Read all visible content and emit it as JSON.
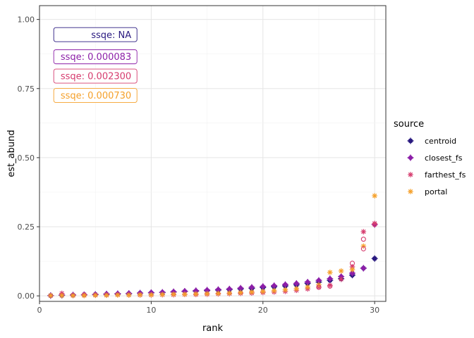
{
  "chart_data": {
    "type": "scatter",
    "xlabel": "rank",
    "ylabel": "est_abund",
    "xlim": [
      0,
      31
    ],
    "ylim": [
      -0.02,
      1.05
    ],
    "x_ticks": [
      0,
      10,
      20,
      30
    ],
    "y_ticks": [
      0.0,
      0.25,
      0.5,
      0.75,
      1.0
    ],
    "x_tick_labels": [
      "0",
      "10",
      "20",
      "30"
    ],
    "y_tick_labels": [
      "0.00",
      "0.25",
      "0.50",
      "0.75",
      "1.00"
    ],
    "grid": true,
    "legend": {
      "title": "source",
      "position": "right"
    },
    "series": [
      {
        "name": "centroid",
        "color": "#2a1a80",
        "marker": "filled-circle-cross",
        "x": [
          1,
          2,
          3,
          4,
          5,
          6,
          7,
          8,
          9,
          10,
          11,
          12,
          13,
          14,
          15,
          16,
          17,
          18,
          19,
          20,
          21,
          22,
          23,
          24,
          25,
          26,
          27,
          28,
          29,
          30
        ],
        "y": [
          0.001,
          0.002,
          0.003,
          0.004,
          0.005,
          0.006,
          0.007,
          0.008,
          0.01,
          0.011,
          0.012,
          0.014,
          0.016,
          0.017,
          0.019,
          0.021,
          0.023,
          0.025,
          0.027,
          0.03,
          0.033,
          0.036,
          0.04,
          0.045,
          0.05,
          0.056,
          0.062,
          0.075,
          0.1,
          0.135
        ]
      },
      {
        "name": "closest_fs",
        "color": "#8c1fa8",
        "marker": "diamond-cross",
        "x": [
          1,
          2,
          3,
          4,
          5,
          6,
          7,
          8,
          9,
          10,
          11,
          12,
          13,
          14,
          15,
          16,
          17,
          18,
          19,
          20,
          21,
          22,
          23,
          24,
          25,
          26,
          27,
          28,
          29,
          30
        ],
        "y": [
          0.001,
          0.003,
          0.003,
          0.004,
          0.005,
          0.007,
          0.008,
          0.009,
          0.01,
          0.012,
          0.013,
          0.015,
          0.017,
          0.019,
          0.021,
          0.023,
          0.025,
          0.028,
          0.031,
          0.034,
          0.037,
          0.041,
          0.045,
          0.05,
          0.056,
          0.062,
          0.07,
          0.082,
          0.1,
          0.258
        ]
      },
      {
        "name": "farthest_fs",
        "color": "#d63c6e",
        "marker": "asterisk",
        "x": [
          1,
          2,
          3,
          4,
          5,
          6,
          7,
          8,
          9,
          10,
          11,
          12,
          13,
          14,
          15,
          16,
          17,
          18,
          19,
          20,
          21,
          22,
          23,
          24,
          25,
          26,
          27,
          28,
          29,
          30
        ],
        "y": [
          0.001,
          0.009,
          0.002,
          0.004,
          0.003,
          0.003,
          0.004,
          0.003,
          0.003,
          0.003,
          0.004,
          0.004,
          0.005,
          0.005,
          0.006,
          0.007,
          0.008,
          0.009,
          0.01,
          0.012,
          0.014,
          0.016,
          0.02,
          0.025,
          0.032,
          0.038,
          0.06,
          0.105,
          0.232,
          0.262
        ]
      },
      {
        "name": "portal",
        "color": "#f5a02a",
        "marker": "asterisk",
        "x": [
          1,
          2,
          3,
          4,
          5,
          6,
          7,
          8,
          9,
          10,
          11,
          12,
          13,
          14,
          15,
          16,
          17,
          18,
          19,
          20,
          21,
          22,
          23,
          24,
          25,
          26,
          27,
          28,
          29,
          30
        ],
        "y": [
          0.001,
          0.001,
          0.001,
          0.001,
          0.002,
          0.002,
          0.003,
          0.003,
          0.004,
          0.004,
          0.005,
          0.006,
          0.006,
          0.007,
          0.008,
          0.009,
          0.01,
          0.012,
          0.014,
          0.016,
          0.019,
          0.022,
          0.026,
          0.032,
          0.04,
          0.085,
          0.09,
          0.095,
          0.18,
          0.362
        ]
      }
    ],
    "extra_points": [
      {
        "series": "farthest_fs",
        "marker": "open-circle",
        "x": [
          25,
          26,
          28,
          29,
          29,
          30
        ],
        "y": [
          0.031,
          0.035,
          0.118,
          0.205,
          0.17,
          0.258
        ]
      }
    ],
    "annotations": [
      {
        "text": "ssqe:      NA",
        "color": "#2a1a80",
        "x": 5,
        "y": 0.945
      },
      {
        "text": "ssqe: 0.000083",
        "color": "#8c1fa8",
        "x": 5,
        "y": 0.865
      },
      {
        "text": "ssqe: 0.002300",
        "color": "#d63c6e",
        "x": 5,
        "y": 0.795
      },
      {
        "text": "ssqe: 0.000730",
        "color": "#f5a02a",
        "x": 5,
        "y": 0.725
      }
    ]
  }
}
